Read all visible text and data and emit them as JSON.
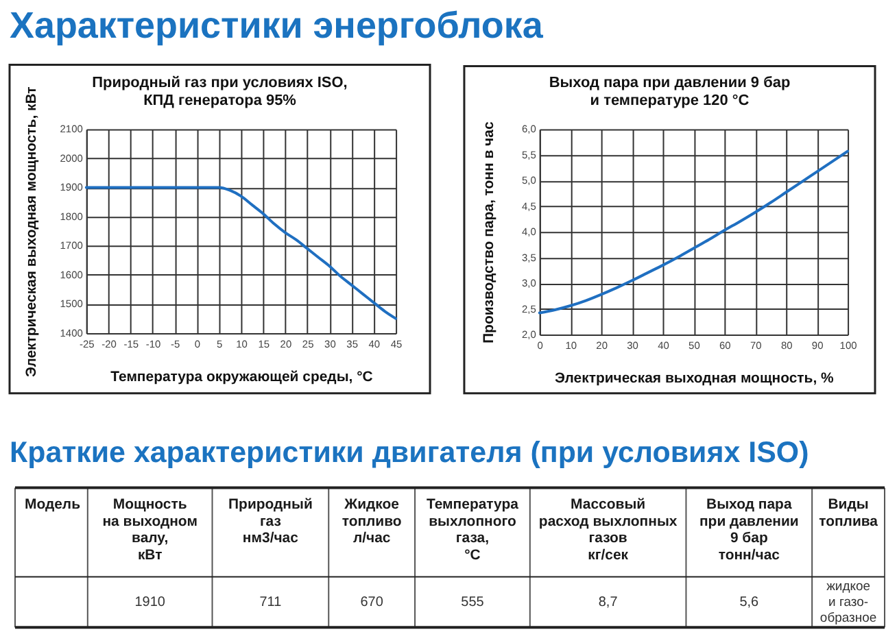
{
  "chart_data": [
    {
      "type": "other",
      "title": "Характеристики энергоблока"
    },
    {
      "type": "line",
      "title": "Природный газ при условиях ISO,\nКПД генератора 95%",
      "xlabel": "Температура окружающей среды, °C",
      "ylabel": "Электрическая выходная мощность, кВт",
      "x": [
        -25,
        -20,
        -15,
        -10,
        -5,
        0,
        5,
        7.5,
        10,
        12.5,
        15,
        17.5,
        20,
        22.5,
        25,
        27.5,
        30,
        32.5,
        35,
        37.5,
        40,
        42.5,
        45
      ],
      "series": [
        {
          "color": "#1f6fc1",
          "values": [
            1900,
            1900,
            1900,
            1900,
            1900,
            1900,
            1900,
            1890,
            1870,
            1840,
            1810,
            1775,
            1745,
            1720,
            1690,
            1660,
            1630,
            1595,
            1565,
            1535,
            1505,
            1475,
            1450
          ]
        }
      ],
      "xlim": [
        -25,
        45
      ],
      "xticks": [
        -25,
        -20,
        -15,
        -10,
        -5,
        0,
        5,
        10,
        15,
        20,
        25,
        30,
        35,
        40,
        45
      ],
      "ylim": [
        1400,
        2100
      ],
      "yticks": [
        1400,
        1500,
        1600,
        1700,
        1800,
        1900,
        2000,
        2100
      ],
      "grid": true
    },
    {
      "type": "line",
      "title": "Выход пара при давлении 9 бар\nи температуре 120 °C",
      "xlabel": "Электрическая выходная мощность, %",
      "ylabel": "Производство пара, тонн в час",
      "x": [
        0,
        5,
        10,
        15,
        20,
        25,
        30,
        35,
        40,
        45,
        50,
        55,
        60,
        65,
        70,
        75,
        80,
        85,
        90,
        95,
        100
      ],
      "series": [
        {
          "color": "#1f6fc1",
          "values": [
            2.42,
            2.48,
            2.56,
            2.66,
            2.78,
            2.91,
            3.05,
            3.2,
            3.35,
            3.51,
            3.68,
            3.85,
            4.03,
            4.2,
            4.38,
            4.57,
            4.77,
            4.97,
            5.17,
            5.37,
            5.57
          ]
        }
      ],
      "xlim": [
        0,
        100
      ],
      "xticks": [
        0,
        10,
        20,
        30,
        40,
        50,
        60,
        70,
        80,
        90,
        100
      ],
      "ylim": [
        2,
        6
      ],
      "yticks": [
        {
          "value": 2,
          "label": "2,0"
        },
        {
          "value": 2.5,
          "label": "2,5"
        },
        {
          "value": 3,
          "label": "3,0"
        },
        {
          "value": 3.5,
          "label": "3,5"
        },
        {
          "value": 4,
          "label": "4,0"
        },
        {
          "value": 4.5,
          "label": "4,5"
        },
        {
          "value": 5,
          "label": "5,0"
        },
        {
          "value": 5.5,
          "label": "5,5"
        },
        {
          "value": 6,
          "label": "6,0"
        }
      ],
      "grid": true
    },
    {
      "type": "other",
      "title": "Краткие характеристики двигателя (при условиях ISO)",
      "categories": [
        "Модель",
        "Мощность\nна выходном\nвалу,\nкВт",
        "Природный\nгаз\n\nнм3/час",
        "Жидкое\nтопливо\n\nл/час",
        "Температура\nвыхлопного\nгаза,\n°C",
        "Массовый\nрасход выхлопных\nгазов\nкг/сек",
        "Выход пара\nпри давлении\n9 бар\nтонн/час",
        "Виды\nтоплива"
      ],
      "values": [
        null,
        1910,
        711,
        670,
        555,
        null,
        null,
        null
      ],
      "data_labels": true,
      "annotations": [
        "8,7",
        "5,6",
        "жидкое\nи газо-\nобразное"
      ]
    }
  ]
}
